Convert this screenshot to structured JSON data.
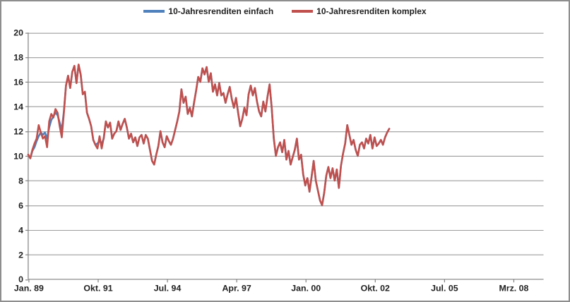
{
  "legend": {
    "items": [
      {
        "label": "10-Jahresrenditen einfach",
        "color": "#4F81BD"
      },
      {
        "label": "10-Jahresrenditen komplex",
        "color": "#C0504D"
      }
    ]
  },
  "colors": {
    "series_einfach": "#4F81BD",
    "series_komplex": "#C0504D",
    "gridline": "#8f8f8f",
    "axis": "#808080",
    "text": "#1f1f1f",
    "background": "#ffffff",
    "frame_border": "#8e8e8e"
  },
  "chart_data": {
    "type": "line",
    "title": "",
    "xlabel": "",
    "ylabel": "",
    "grid": "horizontal only",
    "legend_position": "top center",
    "ylim": [
      0,
      20
    ],
    "y_ticks": [
      0,
      2,
      4,
      6,
      8,
      10,
      12,
      14,
      16,
      18,
      20
    ],
    "x_tick_labels": [
      "Jan. 89",
      "Okt. 91",
      "Jul. 94",
      "Apr. 97",
      "Jan. 00",
      "Okt. 02",
      "Jul. 05",
      "Mrz. 08"
    ],
    "x_tick_month_index": [
      0,
      33,
      66,
      99,
      132,
      165,
      198,
      231
    ],
    "x_axis_end_month_index": 246,
    "x_unit": "months since Jan. 1989 (digitized approximation, data ends mid 2003)",
    "series": [
      {
        "name": "10-Jahresrenditen einfach",
        "color": "#4F81BD",
        "values": [
          10.1,
          9.8,
          10.4,
          10.7,
          11.2,
          11.6,
          11.9,
          11.7,
          11.9,
          11.4,
          12.3,
          12.9,
          13.2,
          13.5,
          13.3,
          12.7,
          12.1,
          13.6,
          15.7,
          16.5,
          15.5,
          16.8,
          17.3,
          15.9,
          17.4,
          16.6,
          15.0,
          15.2,
          13.5,
          13.0,
          12.4,
          11.3,
          10.9,
          11.0,
          11.2,
          11.0,
          11.4,
          12.8,
          12.3,
          12.7,
          11.4,
          11.8,
          12.0,
          12.8,
          12.1,
          12.6,
          13.0,
          12.3,
          11.4,
          11.8,
          11.1,
          11.5,
          10.8,
          11.5,
          11.7,
          11.0,
          11.7,
          11.4,
          10.5,
          9.6,
          9.3,
          10.1,
          10.8,
          12.0,
          11.1,
          10.7,
          11.6,
          11.2,
          10.9,
          11.4,
          12.1,
          12.8,
          13.6,
          15.4,
          14.3,
          14.8,
          13.4,
          13.9,
          13.2,
          14.3,
          15.3,
          16.4,
          16.0,
          17.1,
          16.6,
          17.2,
          16.0,
          16.7,
          15.2,
          15.8,
          14.9,
          15.9,
          14.9,
          15.1,
          14.3,
          15.0,
          15.6,
          14.6,
          13.9,
          14.7,
          13.5,
          12.4,
          13.0,
          13.9,
          13.3,
          15.0,
          15.7,
          14.9,
          15.5,
          14.4,
          13.6,
          13.2,
          14.4,
          13.6,
          14.8,
          15.8,
          13.9,
          11.4,
          10.0,
          10.7,
          11.1,
          10.3,
          11.3,
          9.7,
          10.4,
          9.3,
          9.9,
          10.5,
          11.4,
          9.7,
          10.1,
          8.5,
          7.6,
          8.2,
          7.1,
          8.3,
          9.6,
          8.0,
          7.2,
          6.4,
          6.0,
          7.0,
          8.4,
          9.1,
          8.2,
          9.0,
          8.0,
          8.9,
          7.4,
          9.2,
          10.2,
          11.0,
          12.5,
          11.7,
          10.9,
          11.3,
          10.5,
          10.0,
          10.9,
          11.1,
          10.6,
          11.4,
          11.0,
          11.7,
          10.6,
          11.5,
          10.8,
          11.0,
          11.3,
          10.9,
          11.5,
          11.9,
          12.2
        ]
      },
      {
        "name": "10-Jahresrenditen komplex",
        "color": "#C0504D",
        "values": [
          10.1,
          9.8,
          10.5,
          11.0,
          11.4,
          12.5,
          11.9,
          11.4,
          11.6,
          10.7,
          12.8,
          13.4,
          13.1,
          13.8,
          13.5,
          12.4,
          11.5,
          13.5,
          15.7,
          16.5,
          15.5,
          16.8,
          17.3,
          15.9,
          17.4,
          16.6,
          15.0,
          15.2,
          13.5,
          13.0,
          12.4,
          11.3,
          10.9,
          10.6,
          11.6,
          10.6,
          11.5,
          12.8,
          12.3,
          12.7,
          11.4,
          11.8,
          12.0,
          12.8,
          12.1,
          12.6,
          13.0,
          12.3,
          11.4,
          11.8,
          11.1,
          11.5,
          10.8,
          11.5,
          11.7,
          11.0,
          11.7,
          11.4,
          10.5,
          9.6,
          9.3,
          10.1,
          10.8,
          12.0,
          11.1,
          10.7,
          11.6,
          11.2,
          10.9,
          11.4,
          12.1,
          12.8,
          13.6,
          15.4,
          14.3,
          14.8,
          13.4,
          13.9,
          13.2,
          14.3,
          15.3,
          16.4,
          16.0,
          17.1,
          16.6,
          17.2,
          16.0,
          16.7,
          15.2,
          15.8,
          14.9,
          15.9,
          14.9,
          15.1,
          14.3,
          15.0,
          15.6,
          14.6,
          13.9,
          14.7,
          13.5,
          12.4,
          13.0,
          13.9,
          13.3,
          15.0,
          15.7,
          14.9,
          15.5,
          14.4,
          13.6,
          13.2,
          14.4,
          13.6,
          14.8,
          15.8,
          13.9,
          11.4,
          10.0,
          10.7,
          11.1,
          10.3,
          11.3,
          9.7,
          10.4,
          9.3,
          9.9,
          10.5,
          11.4,
          9.7,
          10.1,
          8.5,
          7.6,
          8.2,
          7.1,
          8.3,
          9.6,
          8.0,
          7.2,
          6.4,
          6.0,
          7.0,
          8.4,
          9.1,
          8.2,
          9.0,
          8.0,
          8.9,
          7.4,
          9.2,
          10.2,
          11.0,
          12.5,
          11.7,
          10.9,
          11.3,
          10.5,
          10.0,
          10.9,
          11.1,
          10.6,
          11.4,
          11.0,
          11.7,
          10.6,
          11.5,
          10.8,
          11.0,
          11.3,
          10.9,
          11.5,
          11.9,
          12.2
        ]
      }
    ]
  }
}
